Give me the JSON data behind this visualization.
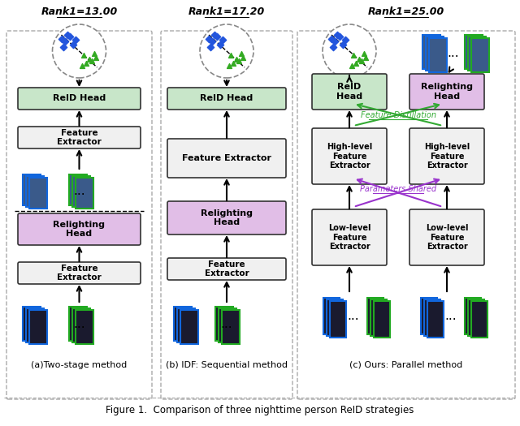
{
  "title": "Figure 1.  Comparison of three nighttime person ReID strategies",
  "bg_color": "#ffffff",
  "panel_a_title": "Rank1=13.00",
  "panel_b_title": "Rank1=17.20",
  "panel_c_title": "Rank1=25.00",
  "caption_a": "(a)Two-stage method",
  "caption_b": "(b) IDF: Sequential method",
  "caption_c": "(c) Ours: Parallel method",
  "box_green_fill": "#c8e6c9",
  "box_purple_fill": "#e1bee7",
  "box_white_fill": "#f0f0f0",
  "box_edge": "#333333",
  "arrow_color": "#111111",
  "green_arrow": "#33aa33",
  "purple_arrow": "#9933cc",
  "dashed_border": "#aaaaaa",
  "circle_edge": "#888888"
}
